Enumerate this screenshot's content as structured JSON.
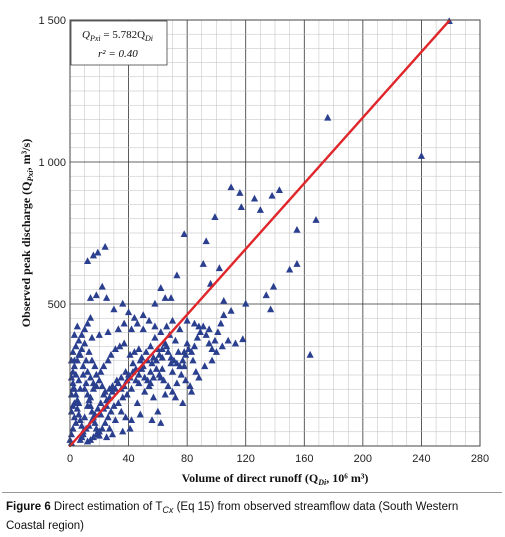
{
  "chart_data": {
    "type": "scatter",
    "xlabel": "Volume of direct runoff (Q",
    "xlabel_sub": "Di",
    "xlabel_tail": ", 10⁶ m³)",
    "ylabel": "Observed peak discharge (Q",
    "ylabel_sub": "Pxi",
    "ylabel_tail": ", m³/s)",
    "xlim": [
      0,
      280
    ],
    "ylim": [
      0,
      1500
    ],
    "x_ticks": [
      0,
      40,
      80,
      120,
      160,
      200,
      240,
      280
    ],
    "y_ticks": [
      {
        "value": 500,
        "label": "500"
      },
      {
        "value": 1000,
        "label": "1 000"
      },
      {
        "value": 1500,
        "label": "1 500"
      }
    ],
    "grid": true,
    "marker_color": "#2b3f8f",
    "line_color": "#e0262b",
    "regression": {
      "slope": 5.782,
      "x_range": [
        0,
        259
      ]
    },
    "annotation": {
      "equation": "Q",
      "eq_sub1": "Pxi",
      "eq_mid": " = 5.782Q",
      "eq_sub2": "Di",
      "r2": "r² = 0.40"
    },
    "series": [
      {
        "marker": "triangle",
        "points": [
          [
            259,
            1495
          ],
          [
            176,
            1155
          ],
          [
            240,
            1020
          ],
          [
            110,
            910
          ],
          [
            116,
            890
          ],
          [
            143,
            900
          ],
          [
            126,
            870
          ],
          [
            138,
            880
          ],
          [
            117,
            840
          ],
          [
            130,
            830
          ],
          [
            155,
            760
          ],
          [
            168,
            795
          ],
          [
            99,
            805
          ],
          [
            93,
            720
          ],
          [
            78,
            745
          ],
          [
            91,
            640
          ],
          [
            102,
            625
          ],
          [
            96,
            570
          ],
          [
            73,
            600
          ],
          [
            62,
            555
          ],
          [
            65,
            520
          ],
          [
            58,
            500
          ],
          [
            69,
            520
          ],
          [
            110,
            475
          ],
          [
            80,
            440
          ],
          [
            85,
            430
          ],
          [
            88,
            420
          ],
          [
            95,
            410
          ],
          [
            75,
            410
          ],
          [
            68,
            390
          ],
          [
            72,
            370
          ],
          [
            80,
            360
          ],
          [
            66,
            350
          ],
          [
            60,
            340
          ],
          [
            52,
            330
          ],
          [
            48,
            300
          ],
          [
            57,
            310
          ],
          [
            43,
            290
          ],
          [
            45,
            270
          ],
          [
            38,
            260
          ],
          [
            35,
            240
          ],
          [
            32,
            230
          ],
          [
            29,
            210
          ],
          [
            27,
            200
          ],
          [
            24,
            190
          ],
          [
            40,
            250
          ],
          [
            50,
            280
          ],
          [
            55,
            260
          ],
          [
            62,
            240
          ],
          [
            70,
            260
          ],
          [
            78,
            280
          ],
          [
            84,
            300
          ],
          [
            63,
            310
          ],
          [
            55,
            350
          ],
          [
            58,
            380
          ],
          [
            50,
            410
          ],
          [
            118,
            375
          ],
          [
            134,
            530
          ],
          [
            139,
            560
          ],
          [
            150,
            620
          ],
          [
            155,
            640
          ],
          [
            164,
            320
          ],
          [
            137,
            480
          ],
          [
            120,
            500
          ],
          [
            105,
            510
          ],
          [
            12,
            650
          ],
          [
            16,
            670
          ],
          [
            19,
            680
          ],
          [
            24,
            700
          ],
          [
            18,
            530
          ],
          [
            22,
            560
          ],
          [
            25,
            520
          ],
          [
            14,
            520
          ],
          [
            30,
            480
          ],
          [
            36,
            500
          ],
          [
            40,
            470
          ],
          [
            44,
            450
          ],
          [
            37,
            430
          ],
          [
            33,
            410
          ],
          [
            26,
            400
          ],
          [
            20,
            390
          ],
          [
            15,
            380
          ],
          [
            10,
            360
          ],
          [
            8,
            340
          ],
          [
            6,
            320
          ],
          [
            5,
            300
          ],
          [
            3,
            280
          ],
          [
            2,
            260
          ],
          [
            1,
            240
          ],
          [
            2,
            220
          ],
          [
            3,
            200
          ],
          [
            4,
            180
          ],
          [
            5,
            160
          ],
          [
            2,
            140
          ],
          [
            1,
            120
          ],
          [
            3,
            100
          ],
          [
            4,
            80
          ],
          [
            2,
            60
          ],
          [
            1,
            40
          ],
          [
            0,
            20
          ],
          [
            1,
            10
          ],
          [
            6,
            150
          ],
          [
            7,
            200
          ],
          [
            9,
            250
          ],
          [
            11,
            300
          ],
          [
            13,
            330
          ],
          [
            15,
            300
          ],
          [
            17,
            280
          ],
          [
            18,
            250
          ],
          [
            20,
            230
          ],
          [
            22,
            210
          ],
          [
            23,
            180
          ],
          [
            25,
            160
          ],
          [
            21,
            150
          ],
          [
            19,
            130
          ],
          [
            17,
            110
          ],
          [
            15,
            90
          ],
          [
            13,
            70
          ],
          [
            11,
            60
          ],
          [
            9,
            40
          ],
          [
            8,
            30
          ],
          [
            7,
            20
          ],
          [
            10,
            100
          ],
          [
            12,
            140
          ],
          [
            14,
            170
          ],
          [
            16,
            200
          ],
          [
            6,
            230
          ],
          [
            4,
            250
          ],
          [
            3,
            300
          ],
          [
            7,
            320
          ],
          [
            9,
            280
          ],
          [
            12,
            260
          ],
          [
            14,
            240
          ],
          [
            16,
            220
          ],
          [
            18,
            210
          ],
          [
            21,
            260
          ],
          [
            23,
            280
          ],
          [
            26,
            300
          ],
          [
            28,
            320
          ],
          [
            31,
            340
          ],
          [
            34,
            350
          ],
          [
            37,
            360
          ],
          [
            41,
            320
          ],
          [
            44,
            330
          ],
          [
            47,
            340
          ],
          [
            49,
            310
          ],
          [
            53,
            300
          ],
          [
            56,
            290
          ],
          [
            59,
            270
          ],
          [
            61,
            250
          ],
          [
            64,
            230
          ],
          [
            67,
            210
          ],
          [
            70,
            190
          ],
          [
            73,
            220
          ],
          [
            76,
            250
          ],
          [
            79,
            230
          ],
          [
            82,
            210
          ],
          [
            86,
            260
          ],
          [
            74,
            330
          ],
          [
            69,
            290
          ],
          [
            63,
            270
          ],
          [
            47,
            220
          ],
          [
            42,
            200
          ],
          [
            39,
            180
          ],
          [
            36,
            170
          ],
          [
            33,
            150
          ],
          [
            30,
            140
          ],
          [
            28,
            120
          ],
          [
            26,
            100
          ],
          [
            24,
            80
          ],
          [
            22,
            60
          ],
          [
            20,
            50
          ],
          [
            18,
            40
          ],
          [
            16,
            30
          ],
          [
            14,
            20
          ],
          [
            12,
            15
          ],
          [
            27,
            60
          ],
          [
            31,
            90
          ],
          [
            35,
            120
          ],
          [
            38,
            100
          ],
          [
            42,
            90
          ],
          [
            46,
            150
          ],
          [
            51,
            190
          ],
          [
            54,
            210
          ],
          [
            57,
            170
          ],
          [
            60,
            120
          ],
          [
            62,
            80
          ],
          [
            65,
            180
          ],
          [
            72,
            170
          ],
          [
            77,
            150
          ],
          [
            83,
            190
          ],
          [
            88,
            240
          ],
          [
            92,
            280
          ],
          [
            97,
            300
          ],
          [
            100,
            330
          ],
          [
            104,
            350
          ],
          [
            108,
            370
          ],
          [
            113,
            360
          ],
          [
            78,
            330
          ],
          [
            56,
            90
          ],
          [
            48,
            110
          ],
          [
            41,
            60
          ],
          [
            36,
            50
          ],
          [
            29,
            40
          ],
          [
            25,
            30
          ],
          [
            4,
            350
          ],
          [
            6,
            370
          ],
          [
            8,
            390
          ],
          [
            10,
            410
          ],
          [
            12,
            430
          ],
          [
            14,
            450
          ],
          [
            5,
            420
          ],
          [
            3,
            390
          ],
          [
            2,
            330
          ],
          [
            1,
            300
          ],
          [
            1,
            180
          ],
          [
            2,
            200
          ],
          [
            3,
            150
          ],
          [
            5,
            130
          ],
          [
            6,
            110
          ],
          [
            7,
            90
          ],
          [
            8,
            70
          ],
          [
            9,
            50
          ],
          [
            10,
            200
          ],
          [
            11,
            220
          ],
          [
            12,
            180
          ],
          [
            13,
            160
          ],
          [
            14,
            140
          ],
          [
            15,
            120
          ],
          [
            16,
            100
          ],
          [
            17,
            80
          ],
          [
            18,
            60
          ],
          [
            19,
            45
          ],
          [
            20,
            35
          ],
          [
            21,
            110
          ],
          [
            23,
            130
          ],
          [
            25,
            140
          ],
          [
            27,
            170
          ],
          [
            29,
            190
          ],
          [
            31,
            200
          ],
          [
            33,
            220
          ],
          [
            35,
            200
          ],
          [
            37,
            210
          ],
          [
            39,
            230
          ],
          [
            41,
            240
          ],
          [
            43,
            260
          ],
          [
            45,
            230
          ],
          [
            47,
            250
          ],
          [
            49,
            270
          ],
          [
            51,
            240
          ],
          [
            53,
            230
          ],
          [
            55,
            220
          ],
          [
            57,
            240
          ],
          [
            59,
            300
          ],
          [
            61,
            320
          ],
          [
            63,
            340
          ],
          [
            65,
            360
          ],
          [
            67,
            330
          ],
          [
            69,
            310
          ],
          [
            71,
            300
          ],
          [
            73,
            290
          ],
          [
            75,
            280
          ],
          [
            77,
            300
          ],
          [
            79,
            320
          ],
          [
            81,
            340
          ],
          [
            83,
            330
          ],
          [
            85,
            350
          ],
          [
            87,
            380
          ],
          [
            89,
            400
          ],
          [
            91,
            420
          ],
          [
            93,
            390
          ],
          [
            95,
            360
          ],
          [
            97,
            340
          ],
          [
            99,
            370
          ],
          [
            101,
            400
          ],
          [
            103,
            430
          ],
          [
            105,
            460
          ],
          [
            70,
            440
          ],
          [
            66,
            420
          ],
          [
            62,
            400
          ],
          [
            58,
            420
          ],
          [
            54,
            440
          ],
          [
            50,
            460
          ],
          [
            46,
            430
          ],
          [
            42,
            410
          ]
        ]
      }
    ]
  },
  "caption": {
    "label": "Figure 6",
    "text_pre": " Direct estimation of T",
    "text_sub": "Cx",
    "text_post": " (Eq 15) from observed streamflow data (South Western Coastal region)"
  }
}
